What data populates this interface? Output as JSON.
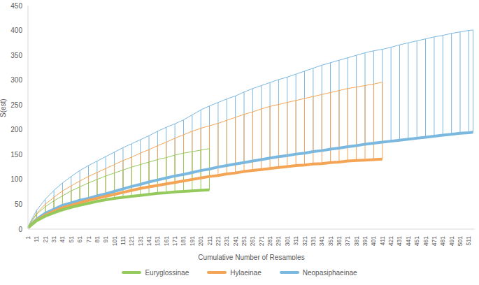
{
  "chart_data": {
    "type": "line",
    "x_label": "Cumulative Number of Resamples",
    "y_label": "S(est)",
    "xlim": [
      1,
      518
    ],
    "xticks": [
      1,
      11,
      21,
      31,
      41,
      51,
      61,
      71,
      81,
      91,
      101,
      111,
      121,
      131,
      141,
      151,
      161,
      171,
      181,
      191,
      201,
      211,
      221,
      231,
      241,
      251,
      261,
      271,
      281,
      291,
      301,
      311,
      321,
      331,
      341,
      351,
      361,
      371,
      381,
      391,
      401,
      411,
      421,
      431,
      441,
      451,
      461,
      471,
      481,
      491,
      501,
      511
    ],
    "ylim": [
      0,
      450
    ],
    "yticks": [
      0,
      50,
      100,
      150,
      200,
      250,
      300,
      350,
      400,
      450
    ],
    "grid": false,
    "legend": "bottom",
    "series": [
      {
        "name": "Euryglossinae",
        "color": "#94c95b",
        "x": [
          1,
          11,
          21,
          31,
          41,
          51,
          61,
          71,
          81,
          91,
          101,
          111,
          121,
          131,
          141,
          151,
          161,
          171,
          181,
          191,
          201,
          211
        ],
        "values": [
          3,
          17,
          26,
          33,
          39,
          44,
          48,
          52,
          56,
          59,
          62,
          64,
          66,
          68,
          70,
          72,
          73,
          75,
          76,
          77,
          78,
          79
        ],
        "upper": [
          5,
          30,
          45,
          57,
          67,
          77,
          85,
          93,
          100,
          107,
          113,
          119,
          125,
          130,
          135,
          140,
          144,
          149,
          153,
          156,
          159,
          162
        ]
      },
      {
        "name": "Hylaeinae",
        "color": "#f4a455",
        "x": [
          1,
          11,
          21,
          31,
          41,
          51,
          61,
          71,
          81,
          91,
          101,
          111,
          121,
          131,
          141,
          151,
          161,
          171,
          181,
          191,
          201,
          211,
          221,
          231,
          241,
          251,
          261,
          271,
          281,
          291,
          301,
          311,
          321,
          331,
          341,
          351,
          361,
          371,
          381,
          391,
          401,
          411
        ],
        "values": [
          3,
          18,
          28,
          36,
          43,
          48,
          53,
          58,
          62,
          66,
          70,
          74,
          78,
          82,
          85,
          88,
          91,
          94,
          97,
          100,
          103,
          106,
          108,
          111,
          113,
          116,
          118,
          120,
          122,
          124,
          126,
          128,
          129,
          131,
          132,
          134,
          135,
          137,
          138,
          139,
          140,
          141
        ],
        "upper": [
          5,
          32,
          50,
          64,
          77,
          87,
          97,
          106,
          114,
          122,
          130,
          138,
          145,
          153,
          160,
          168,
          175,
          183,
          190,
          197,
          203,
          208,
          213,
          219,
          225,
          231,
          236,
          242,
          247,
          251,
          255,
          259,
          263,
          267,
          271,
          275,
          279,
          283,
          286,
          289,
          292,
          296
        ]
      },
      {
        "name": "Neopasiphaeinae",
        "color": "#7ab8e0",
        "x": [
          1,
          11,
          21,
          31,
          41,
          51,
          61,
          71,
          81,
          91,
          101,
          111,
          121,
          131,
          141,
          151,
          161,
          171,
          181,
          191,
          201,
          211,
          221,
          231,
          241,
          251,
          261,
          271,
          281,
          291,
          301,
          311,
          321,
          331,
          341,
          351,
          361,
          371,
          381,
          391,
          401,
          411,
          421,
          431,
          441,
          451,
          461,
          471,
          481,
          491,
          501,
          511,
          516
        ],
        "values": [
          3,
          20,
          32,
          40,
          48,
          53,
          58,
          62,
          67,
          71,
          76,
          81,
          86,
          90,
          95,
          99,
          103,
          107,
          110,
          114,
          118,
          121,
          125,
          128,
          131,
          134,
          137,
          140,
          143,
          146,
          148,
          151,
          153,
          156,
          158,
          161,
          163,
          166,
          168,
          171,
          173,
          175,
          177,
          179,
          181,
          183,
          185,
          187,
          189,
          191,
          193,
          194,
          195
        ],
        "upper": [
          5,
          38,
          60,
          78,
          93,
          106,
          118,
          128,
          137,
          146,
          155,
          164,
          172,
          180,
          188,
          197,
          205,
          212,
          220,
          230,
          240,
          248,
          255,
          262,
          268,
          276,
          283,
          289,
          295,
          301,
          306,
          312,
          318,
          324,
          330,
          335,
          340,
          345,
          350,
          355,
          359,
          362,
          366,
          371,
          375,
          379,
          383,
          387,
          390,
          394,
          397,
          400,
          401
        ]
      }
    ]
  }
}
